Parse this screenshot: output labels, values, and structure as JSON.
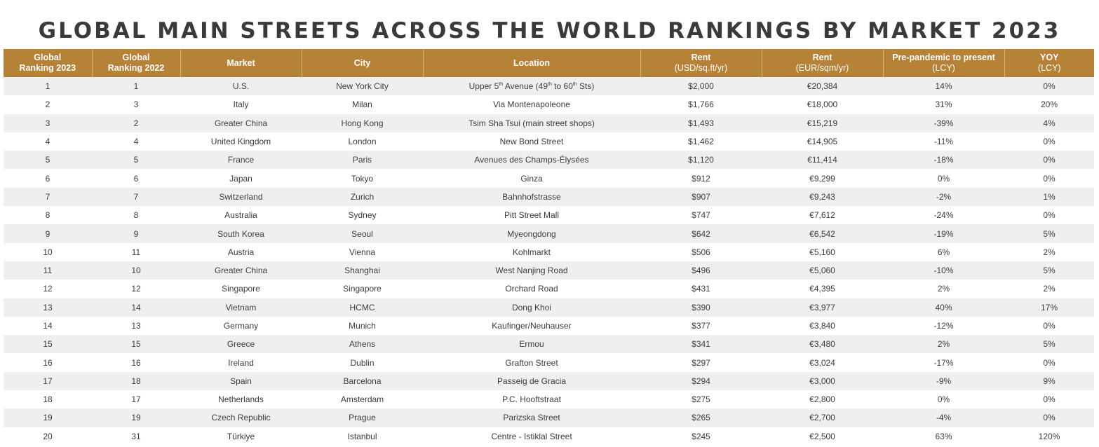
{
  "title": "GLOBAL MAIN STREETS ACROSS THE WORLD RANKINGS BY MARKET 2023",
  "columns": [
    {
      "line1": "Global",
      "line2": "Ranking 2023"
    },
    {
      "line1": "Global",
      "line2": "Ranking 2022"
    },
    {
      "line1": "Market",
      "line2": ""
    },
    {
      "line1": "City",
      "line2": ""
    },
    {
      "line1": "Location",
      "line2": ""
    },
    {
      "line1": "Rent",
      "line2": "(USD/sq.ft/yr)"
    },
    {
      "line1": "Rent",
      "line2": "(EUR/sqm/yr)"
    },
    {
      "line1": "Pre-pandemic to present",
      "line2": "(LCY)"
    },
    {
      "line1": "YOY",
      "line2": "(LCY)"
    }
  ],
  "first_location": {
    "a": "Upper 5",
    "a_sup": "th",
    "b": " Avenue (49",
    "b_sup": "th",
    "c": " to 60",
    "c_sup": "th",
    "d": " Sts)"
  },
  "rows": [
    [
      "1",
      "1",
      "U.S.",
      "New York City",
      "Upper 5th Avenue (49th to 60th Sts)",
      "$2,000",
      "€20,384",
      "14%",
      "0%"
    ],
    [
      "2",
      "3",
      "Italy",
      "Milan",
      "Via Montenapoleone",
      "$1,766",
      "€18,000",
      "31%",
      "20%"
    ],
    [
      "3",
      "2",
      "Greater China",
      "Hong Kong",
      "Tsim Sha Tsui (main street shops)",
      "$1,493",
      "€15,219",
      "-39%",
      "4%"
    ],
    [
      "4",
      "4",
      "United Kingdom",
      "London",
      "New Bond Street",
      "$1,462",
      "€14,905",
      "-11%",
      "0%"
    ],
    [
      "5",
      "5",
      "France",
      "Paris",
      "Avenues des Champs-Élysées",
      "$1,120",
      "€11,414",
      "-18%",
      "0%"
    ],
    [
      "6",
      "6",
      "Japan",
      "Tokyo",
      "Ginza",
      "$912",
      "€9,299",
      "0%",
      "0%"
    ],
    [
      "7",
      "7",
      "Switzerland",
      "Zurich",
      "Bahnhofstrasse",
      "$907",
      "€9,243",
      "-2%",
      "1%"
    ],
    [
      "8",
      "8",
      "Australia",
      "Sydney",
      "Pitt Street Mall",
      "$747",
      "€7,612",
      "-24%",
      "0%"
    ],
    [
      "9",
      "9",
      "South Korea",
      "Seoul",
      "Myeongdong",
      "$642",
      "€6,542",
      "-19%",
      "5%"
    ],
    [
      "10",
      "11",
      "Austria",
      "Vienna",
      "Kohlmarkt",
      "$506",
      "€5,160",
      "6%",
      "2%"
    ],
    [
      "11",
      "10",
      "Greater China",
      "Shanghai",
      "West Nanjing Road",
      "$496",
      "€5,060",
      "-10%",
      "5%"
    ],
    [
      "12",
      "12",
      "Singapore",
      "Singapore",
      "Orchard Road",
      "$431",
      "€4,395",
      "2%",
      "2%"
    ],
    [
      "13",
      "14",
      "Vietnam",
      "HCMC",
      "Dong Khoi",
      "$390",
      "€3,977",
      "40%",
      "17%"
    ],
    [
      "14",
      "13",
      "Germany",
      "Munich",
      "Kaufinger/Neuhauser",
      "$377",
      "€3,840",
      "-12%",
      "0%"
    ],
    [
      "15",
      "15",
      "Greece",
      "Athens",
      "Ermou",
      "$341",
      "€3,480",
      "2%",
      "5%"
    ],
    [
      "16",
      "16",
      "Ireland",
      "Dublin",
      "Grafton Street",
      "$297",
      "€3,024",
      "-17%",
      "0%"
    ],
    [
      "17",
      "18",
      "Spain",
      "Barcelona",
      "Passeig de Gracia",
      "$294",
      "€3,000",
      "-9%",
      "9%"
    ],
    [
      "18",
      "17",
      "Netherlands",
      "Amsterdam",
      "P.C. Hooftstraat",
      "$275",
      "€2,800",
      "0%",
      "0%"
    ],
    [
      "19",
      "19",
      "Czech Republic",
      "Prague",
      "Parizska Street",
      "$265",
      "€2,700",
      "-4%",
      "0%"
    ],
    [
      "20",
      "31",
      "Türkiye",
      "Istanbul",
      "Centre - Istiklal Street",
      "$245",
      "€2,500",
      "63%",
      "120%"
    ]
  ],
  "colors": {
    "header_bg": "#b58238",
    "stripe": "#efefef",
    "title": "#3a3a3a"
  }
}
